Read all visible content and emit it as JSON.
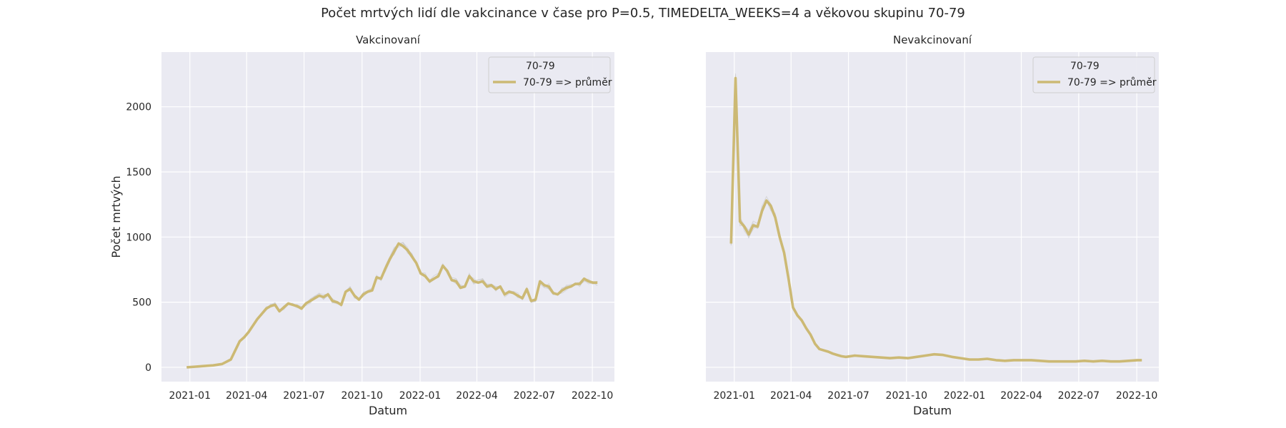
{
  "figure": {
    "title": "Počet mrtvých lidí dle vakcinance v čase pro P=0.5, TIMEDELTA_WEEKS=4 a věkovou skupinu 70-79"
  },
  "style": {
    "background": "#EAEAF2",
    "grid": "#FFFFFF",
    "mean_line": "#CCB974",
    "sample_lines": "#C8C8C8"
  },
  "chart_data": [
    {
      "type": "line",
      "title": "Vakcinovaní",
      "xlabel": "Datum",
      "ylabel": "Počet mrtvých",
      "x_ticks": [
        "2021-01",
        "2021-04",
        "2021-07",
        "2021-10",
        "2022-01",
        "2022-04",
        "2022-07",
        "2022-10"
      ],
      "y_ticks": [
        0,
        500,
        1000,
        1500,
        2000
      ],
      "xlim": [
        "2020-11-17",
        "2022-11-05"
      ],
      "ylim": [
        -110,
        2420
      ],
      "grid": true,
      "legend": {
        "placement": "top-right",
        "title": "70-79",
        "entries": [
          "70-79 => průměr"
        ]
      },
      "series": [
        {
          "name": "70-79 => průměr",
          "x": [
            "2020-12-27",
            "2021-01-10",
            "2021-01-24",
            "2021-02-07",
            "2021-02-21",
            "2021-03-07",
            "2021-03-14",
            "2021-03-21",
            "2021-03-28",
            "2021-04-04",
            "2021-04-11",
            "2021-04-18",
            "2021-04-25",
            "2021-05-02",
            "2021-05-09",
            "2021-05-16",
            "2021-05-23",
            "2021-05-30",
            "2021-06-06",
            "2021-06-13",
            "2021-06-20",
            "2021-06-27",
            "2021-07-04",
            "2021-07-11",
            "2021-07-18",
            "2021-07-25",
            "2021-08-01",
            "2021-08-08",
            "2021-08-15",
            "2021-08-22",
            "2021-08-29",
            "2021-09-05",
            "2021-09-12",
            "2021-09-19",
            "2021-09-26",
            "2021-10-03",
            "2021-10-10",
            "2021-10-17",
            "2021-10-24",
            "2021-10-31",
            "2021-11-07",
            "2021-11-14",
            "2021-11-21",
            "2021-11-28",
            "2021-12-05",
            "2021-12-12",
            "2021-12-19",
            "2021-12-26",
            "2022-01-02",
            "2022-01-09",
            "2022-01-16",
            "2022-01-23",
            "2022-01-30",
            "2022-02-06",
            "2022-02-13",
            "2022-02-20",
            "2022-02-27",
            "2022-03-06",
            "2022-03-13",
            "2022-03-20",
            "2022-03-27",
            "2022-04-03",
            "2022-04-10",
            "2022-04-17",
            "2022-04-24",
            "2022-05-01",
            "2022-05-08",
            "2022-05-15",
            "2022-05-22",
            "2022-05-29",
            "2022-06-05",
            "2022-06-12",
            "2022-06-19",
            "2022-06-26",
            "2022-07-03",
            "2022-07-10",
            "2022-07-17",
            "2022-07-24",
            "2022-07-31",
            "2022-08-07",
            "2022-08-14",
            "2022-08-21",
            "2022-08-28",
            "2022-09-04",
            "2022-09-11",
            "2022-09-18",
            "2022-09-25",
            "2022-10-02",
            "2022-10-09"
          ],
          "y": [
            0,
            5,
            10,
            15,
            25,
            60,
            130,
            200,
            230,
            270,
            320,
            370,
            410,
            450,
            470,
            480,
            430,
            460,
            490,
            480,
            470,
            450,
            490,
            510,
            530,
            550,
            540,
            560,
            510,
            500,
            480,
            580,
            600,
            550,
            520,
            560,
            580,
            590,
            690,
            680,
            760,
            830,
            890,
            950,
            930,
            900,
            850,
            800,
            720,
            700,
            660,
            680,
            700,
            780,
            740,
            670,
            660,
            610,
            620,
            700,
            660,
            650,
            660,
            620,
            630,
            600,
            620,
            560,
            580,
            570,
            550,
            530,
            600,
            510,
            520,
            660,
            630,
            620,
            570,
            560,
            590,
            610,
            620,
            640,
            640,
            680,
            660,
            650,
            650
          ]
        }
      ]
    },
    {
      "type": "line",
      "title": "Nevakcinovaní",
      "xlabel": "Datum",
      "ylabel": "",
      "x_ticks": [
        "2021-01",
        "2021-04",
        "2021-07",
        "2021-10",
        "2022-01",
        "2022-04",
        "2022-07",
        "2022-10"
      ],
      "y_ticks": [
        0,
        500,
        1000,
        1500,
        2000
      ],
      "xlim": [
        "2020-11-17",
        "2022-11-05"
      ],
      "ylim": [
        -110,
        2420
      ],
      "grid": true,
      "legend": {
        "placement": "top-right",
        "title": "70-79",
        "entries": [
          "70-79 => průměr"
        ]
      },
      "series": [
        {
          "name": "70-79 => průměr",
          "x": [
            "2020-12-27",
            "2021-01-03",
            "2021-01-10",
            "2021-01-17",
            "2021-01-24",
            "2021-01-31",
            "2021-02-07",
            "2021-02-14",
            "2021-02-21",
            "2021-02-28",
            "2021-03-07",
            "2021-03-14",
            "2021-03-21",
            "2021-03-28",
            "2021-04-04",
            "2021-04-11",
            "2021-04-18",
            "2021-04-25",
            "2021-05-02",
            "2021-05-09",
            "2021-05-16",
            "2021-05-23",
            "2021-05-30",
            "2021-06-06",
            "2021-06-13",
            "2021-06-20",
            "2021-06-27",
            "2021-07-11",
            "2021-07-25",
            "2021-08-08",
            "2021-08-22",
            "2021-09-05",
            "2021-09-19",
            "2021-10-03",
            "2021-10-17",
            "2021-10-31",
            "2021-11-14",
            "2021-11-28",
            "2021-12-12",
            "2021-12-26",
            "2022-01-09",
            "2022-01-23",
            "2022-02-06",
            "2022-02-20",
            "2022-03-06",
            "2022-03-20",
            "2022-04-03",
            "2022-04-17",
            "2022-05-01",
            "2022-05-15",
            "2022-05-29",
            "2022-06-12",
            "2022-06-26",
            "2022-07-10",
            "2022-07-24",
            "2022-08-07",
            "2022-08-21",
            "2022-09-04",
            "2022-09-18",
            "2022-10-02",
            "2022-10-09"
          ],
          "y": [
            950,
            2220,
            1120,
            1080,
            1020,
            1090,
            1080,
            1200,
            1280,
            1240,
            1150,
            1000,
            880,
            680,
            460,
            400,
            360,
            300,
            250,
            180,
            140,
            130,
            120,
            105,
            95,
            85,
            80,
            90,
            85,
            80,
            75,
            70,
            75,
            70,
            80,
            90,
            100,
            95,
            80,
            70,
            60,
            60,
            65,
            55,
            50,
            55,
            55,
            55,
            50,
            45,
            45,
            45,
            45,
            50,
            45,
            50,
            45,
            45,
            50,
            55,
            55
          ]
        }
      ]
    }
  ]
}
